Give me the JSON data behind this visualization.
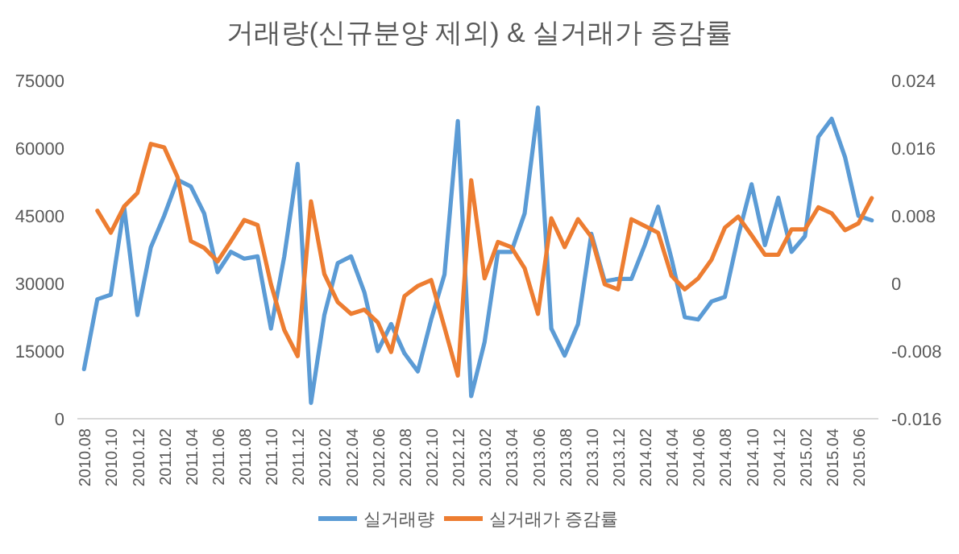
{
  "chart_data": {
    "type": "line",
    "title": "거래량(신규분양 제외) & 실거래가 증감률",
    "categories": [
      "2010.08",
      null,
      "2010.10",
      null,
      "2010.12",
      null,
      "2011.02",
      null,
      "2011.04",
      null,
      "2011.06",
      null,
      "2011.08",
      null,
      "2011.10",
      null,
      "2011.12",
      null,
      "2012.02",
      null,
      "2012.04",
      null,
      "2012.06",
      null,
      "2012.08",
      null,
      "2012.10",
      null,
      "2012.12",
      null,
      "2013.02",
      null,
      "2013.04",
      null,
      "2013.06",
      null,
      "2013.08",
      null,
      "2013.10",
      null,
      "2013.12",
      null,
      "2014.02",
      null,
      "2014.04",
      null,
      "2014.06",
      null,
      "2014.08",
      null,
      "2014.10",
      null,
      "2014.12",
      null,
      "2015.02",
      null,
      "2015.04",
      null,
      "2015.06",
      null
    ],
    "series": [
      {
        "name": "실거래량",
        "color": "#5b9bd5",
        "values": [
          11000,
          26500,
          27500,
          47000,
          23000,
          38000,
          45000,
          53000,
          51500,
          45500,
          32500,
          37000,
          35500,
          36000,
          20000,
          36000,
          56500,
          3500,
          23000,
          34500,
          36000,
          28000,
          15000,
          21000,
          14500,
          10500,
          22000,
          32000,
          66000,
          5000,
          17000,
          37000,
          37000,
          45500,
          69000,
          20000,
          14000,
          21000,
          41000,
          30500,
          31000,
          31000,
          38500,
          47000,
          35500,
          22500,
          22000,
          26000,
          27000,
          40500,
          52000,
          38500,
          49000,
          37000,
          40500,
          62500,
          66500,
          58000,
          45000,
          44000
        ]
      },
      {
        "name": "실거래가 증감률",
        "color": "#ed7d31",
        "axis": "y2",
        "values": [
          null,
          0.0086,
          0.006,
          0.0091,
          0.0107,
          0.0165,
          0.0161,
          0.0126,
          0.005,
          0.0042,
          0.0026,
          0.005,
          0.0075,
          0.0069,
          -0.0001,
          -0.0055,
          -0.0086,
          0.0097,
          0.0011,
          -0.0022,
          -0.0036,
          -0.0031,
          -0.0046,
          -0.0081,
          -0.0015,
          -0.0003,
          0.0004,
          -0.0052,
          -0.0109,
          0.0122,
          0.0006,
          0.0049,
          0.0043,
          0.0018,
          -0.0036,
          0.0077,
          0.0043,
          0.0076,
          0.0055,
          -0.0001,
          -0.0007,
          0.0076,
          0.0068,
          0.006,
          0.0009,
          -0.0007,
          0.0006,
          0.0028,
          0.0066,
          0.0079,
          0.0057,
          0.0034,
          0.0034,
          0.0064,
          0.0064,
          0.009,
          0.0083,
          0.0063,
          0.0071,
          0.0101
        ]
      }
    ],
    "ylim": [
      0,
      75000
    ],
    "yticks": [
      0,
      15000,
      30000,
      45000,
      60000,
      75000
    ],
    "y2lim": [
      -0.016,
      0.024
    ],
    "y2ticks": [
      -0.016,
      -0.008,
      0,
      0.008,
      0.016,
      0.024
    ],
    "legend": "bottom",
    "grid": false
  }
}
